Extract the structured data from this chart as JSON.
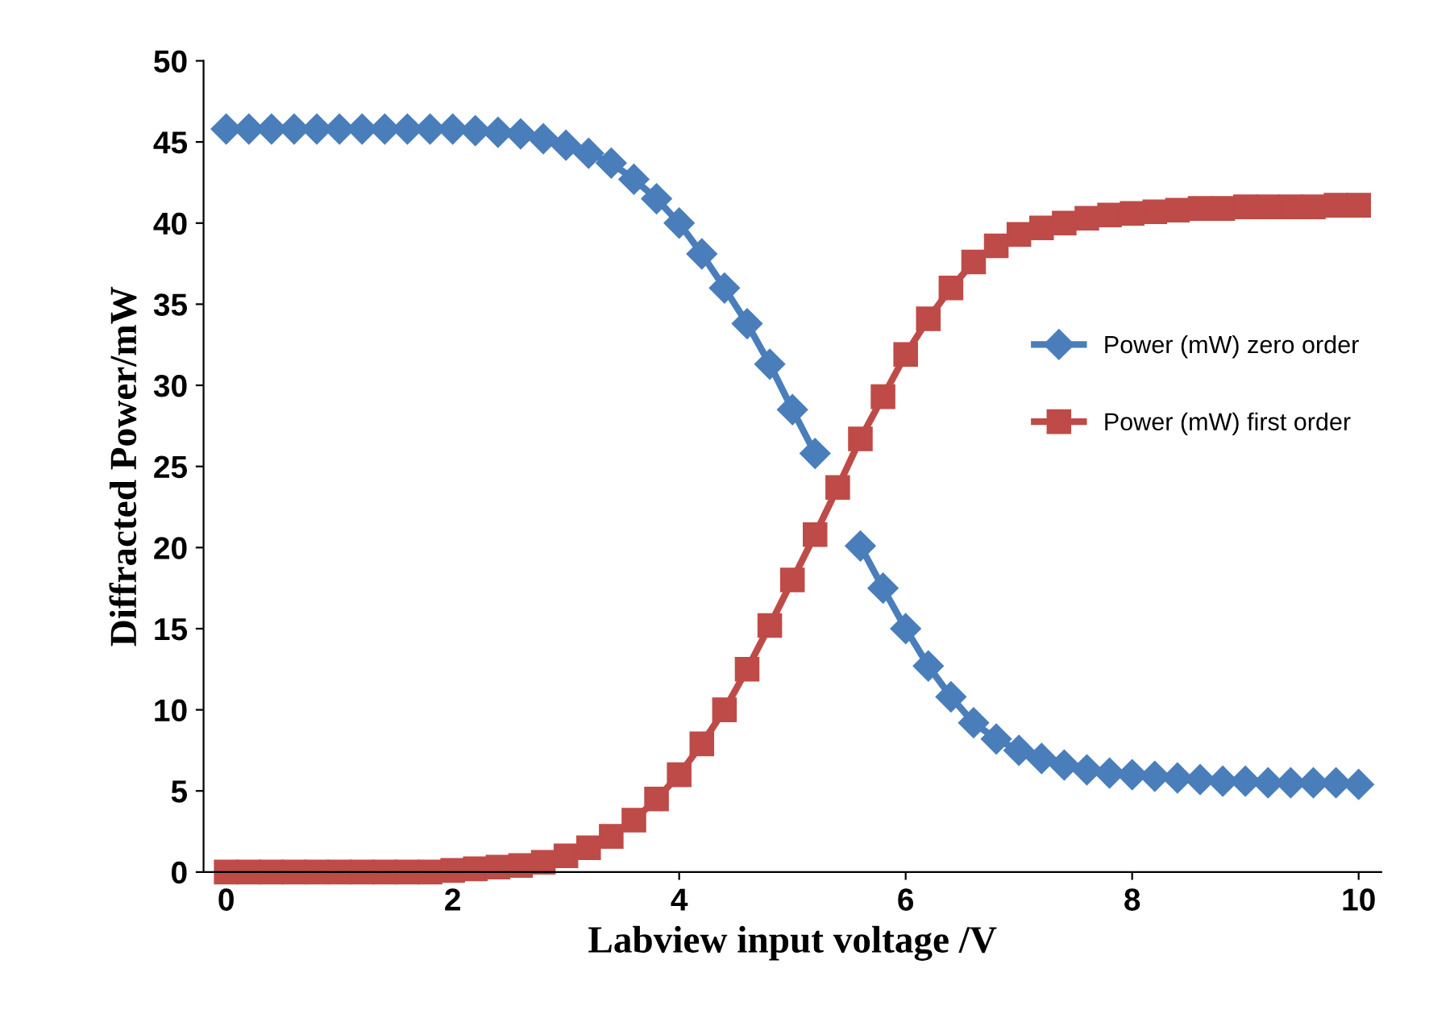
{
  "chart_data": {
    "type": "line",
    "xlabel": "Labview input voltage /V",
    "ylabel": "Diffracted Power/mW",
    "x": [
      0,
      0.2,
      0.4,
      0.6,
      0.8,
      1.0,
      1.2,
      1.4,
      1.6,
      1.8,
      2.0,
      2.2,
      2.4,
      2.6,
      2.8,
      3.0,
      3.2,
      3.4,
      3.6,
      3.8,
      4.0,
      4.2,
      4.4,
      4.6,
      4.8,
      5.0,
      5.2,
      5.4,
      5.6,
      5.8,
      6.0,
      6.2,
      6.4,
      6.6,
      6.8,
      7.0,
      7.2,
      7.4,
      7.6,
      7.8,
      8.0,
      8.2,
      8.4,
      8.6,
      8.8,
      9.0,
      9.2,
      9.4,
      9.6,
      9.8,
      10.0
    ],
    "series": [
      {
        "name": "Power (mW) zero order",
        "color": "#4a7ebb",
        "marker": "diamond",
        "values": [
          45.8,
          45.8,
          45.8,
          45.8,
          45.8,
          45.8,
          45.8,
          45.8,
          45.8,
          45.8,
          45.8,
          45.7,
          45.6,
          45.5,
          45.2,
          44.8,
          44.3,
          43.7,
          42.7,
          41.5,
          40.0,
          38.1,
          36.0,
          33.8,
          31.3,
          28.5,
          25.8,
          null,
          20.1,
          17.5,
          15.0,
          12.7,
          10.8,
          9.2,
          8.2,
          7.5,
          7.0,
          6.6,
          6.3,
          6.1,
          6.0,
          5.9,
          5.8,
          5.7,
          5.6,
          5.6,
          5.5,
          5.5,
          5.5,
          5.5,
          5.4
        ]
      },
      {
        "name": "Power (mW) first order",
        "color": "#be4b48",
        "marker": "square",
        "values": [
          0,
          0,
          0,
          0,
          0,
          0,
          0,
          0,
          0,
          0,
          0.1,
          0.2,
          0.3,
          0.4,
          0.6,
          1.0,
          1.5,
          2.2,
          3.2,
          4.5,
          6.0,
          7.9,
          10.0,
          12.5,
          15.2,
          18.0,
          20.8,
          23.7,
          26.7,
          29.3,
          31.9,
          34.1,
          36.0,
          37.6,
          38.6,
          39.3,
          39.7,
          40.0,
          40.3,
          40.5,
          40.6,
          40.7,
          40.8,
          40.9,
          40.9,
          41.0,
          41.0,
          41.0,
          41.0,
          41.1,
          41.1
        ]
      }
    ],
    "xlim": [
      -0.2,
      10.2
    ],
    "xticks": [
      0,
      2,
      4,
      6,
      8,
      10
    ],
    "ylim": [
      0,
      50
    ],
    "yticks": [
      0,
      5,
      10,
      15,
      20,
      25,
      30,
      35,
      40,
      45,
      50
    ],
    "grid": false,
    "legend": "right",
    "line_style": "solid"
  }
}
